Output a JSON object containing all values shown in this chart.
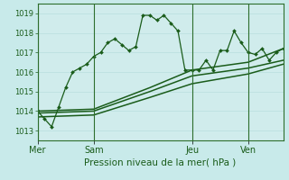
{
  "xlabel": "Pression niveau de la mer( hPa )",
  "bg_color": "#c8eaea",
  "plot_bg_color": "#d0ecec",
  "grid_color": "#b8dede",
  "line_color": "#1a5c1a",
  "ylim": [
    1012.5,
    1019.5
  ],
  "yticks": [
    1013,
    1014,
    1015,
    1016,
    1017,
    1018,
    1019
  ],
  "day_labels": [
    "Mer",
    "Sam",
    "Jeu",
    "Ven"
  ],
  "day_positions": [
    0,
    8,
    22,
    30
  ],
  "series1_x": [
    0,
    1,
    2,
    3,
    4,
    5,
    6,
    7,
    8,
    9,
    10,
    11,
    12,
    13,
    14,
    15,
    16,
    17,
    18,
    19,
    20,
    21,
    22,
    23,
    24,
    25,
    26,
    27,
    28,
    29,
    30,
    31,
    32,
    33,
    34,
    35
  ],
  "series1_y": [
    1014.0,
    1013.6,
    1013.2,
    1014.2,
    1015.2,
    1016.0,
    1016.2,
    1016.4,
    1016.8,
    1017.0,
    1017.5,
    1017.7,
    1017.4,
    1017.1,
    1017.3,
    1018.9,
    1018.9,
    1018.65,
    1018.9,
    1018.5,
    1018.1,
    1016.1,
    1016.1,
    1016.1,
    1016.6,
    1016.1,
    1017.1,
    1017.1,
    1018.1,
    1017.5,
    1017.0,
    1016.9,
    1017.2,
    1016.6,
    1017.0,
    1017.2
  ],
  "series2_x": [
    0,
    8,
    16,
    22,
    30,
    35
  ],
  "series2_y": [
    1013.9,
    1014.0,
    1015.0,
    1015.8,
    1016.2,
    1016.6
  ],
  "series3_y": [
    1013.7,
    1013.8,
    1014.7,
    1015.4,
    1015.9,
    1016.4
  ],
  "series4_y": [
    1014.0,
    1014.1,
    1015.2,
    1016.1,
    1016.5,
    1017.2
  ],
  "total_points": 36,
  "vline_color": "#2d6e2d",
  "xlabel_fontsize": 7.5,
  "ytick_fontsize": 6,
  "xtick_fontsize": 7
}
